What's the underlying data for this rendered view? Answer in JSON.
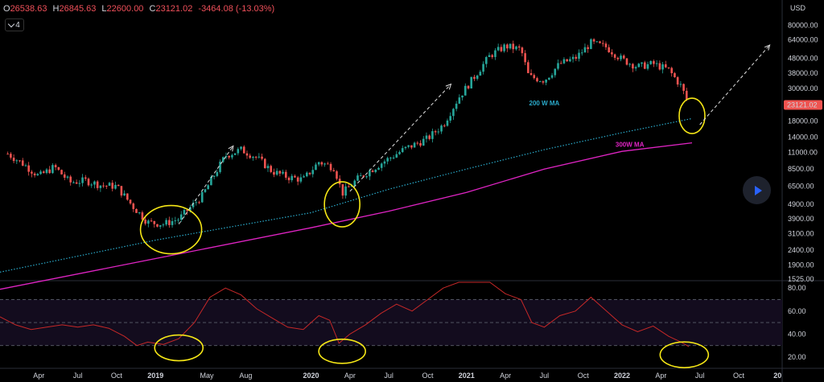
{
  "header": {
    "open_label": "O",
    "open": "26538.63",
    "high_label": "H",
    "high": "26845.63",
    "low_label": "L",
    "low": "22600.00",
    "close_label": "C",
    "close": "23121.02",
    "change": "-3464.08 (-13.03%)",
    "indicator_count": "4",
    "currency": "USD"
  },
  "colors": {
    "up": "#26a69a",
    "down": "#ef5350",
    "ma200": "#2aa9c9",
    "ma300": "#e024c4",
    "rsi": "#c62828",
    "circle": "#f5e616",
    "price_tag": "#ef5350"
  },
  "chart_data": [
    {
      "type": "candlestick",
      "scale": "log",
      "ylim": [
        1525,
        95000
      ],
      "y_ticks": [
        "80000.00",
        "64000.00",
        "48000.00",
        "38000.00",
        "30000.00",
        "18000.00",
        "14000.00",
        "11000.00",
        "8500.00",
        "6500.00",
        "4900.00",
        "3900.00",
        "3100.00",
        "2400.00",
        "1900.00",
        "1525.00"
      ],
      "x_ticks": [
        "Apr",
        "Jul",
        "Oct",
        "2019",
        "May",
        "Aug",
        "2020",
        "Apr",
        "Jul",
        "Oct",
        "2021",
        "Apr",
        "Jul",
        "Oct",
        "2022",
        "Apr",
        "Jul",
        "Oct",
        "20"
      ],
      "last_price": "23121.02",
      "series": [
        {
          "name": "200 W MA",
          "points": [
            [
              2018.0,
              1700
            ],
            [
              2019.0,
              2800
            ],
            [
              2020.0,
              4300
            ],
            [
              2020.5,
              6200
            ],
            [
              2021.0,
              8500
            ],
            [
              2021.5,
              11500
            ],
            [
              2022.0,
              15000
            ],
            [
              2022.45,
              18700
            ]
          ]
        },
        {
          "name": "300W MA",
          "points": [
            [
              2018.0,
              1300
            ],
            [
              2019.0,
              2100
            ],
            [
              2020.0,
              3400
            ],
            [
              2020.5,
              4400
            ],
            [
              2021.0,
              5900
            ],
            [
              2021.5,
              8500
            ],
            [
              2022.0,
              11200
            ],
            [
              2022.45,
              12800
            ]
          ]
        }
      ],
      "price_path": [
        [
          2018.05,
          10800
        ],
        [
          2018.15,
          9200
        ],
        [
          2018.25,
          7600
        ],
        [
          2018.35,
          8800
        ],
        [
          2018.45,
          6900
        ],
        [
          2018.55,
          7100
        ],
        [
          2018.65,
          6600
        ],
        [
          2018.75,
          6500
        ],
        [
          2018.85,
          4800
        ],
        [
          2018.95,
          3700
        ],
        [
          2019.05,
          3600
        ],
        [
          2019.15,
          3900
        ],
        [
          2019.3,
          5600
        ],
        [
          2019.45,
          10500
        ],
        [
          2019.55,
          11500
        ],
        [
          2019.65,
          10200
        ],
        [
          2019.75,
          8200
        ],
        [
          2019.85,
          7500
        ],
        [
          2019.95,
          7200
        ],
        [
          2020.05,
          9500
        ],
        [
          2020.15,
          8700
        ],
        [
          2020.2,
          5800
        ],
        [
          2020.3,
          7300
        ],
        [
          2020.45,
          9300
        ],
        [
          2020.6,
          11600
        ],
        [
          2020.75,
          13700
        ],
        [
          2020.85,
          17000
        ],
        [
          2020.95,
          26000
        ],
        [
          2021.05,
          36000
        ],
        [
          2021.15,
          50000
        ],
        [
          2021.25,
          58000
        ],
        [
          2021.35,
          55000
        ],
        [
          2021.4,
          36000
        ],
        [
          2021.5,
          34000
        ],
        [
          2021.6,
          44000
        ],
        [
          2021.7,
          48000
        ],
        [
          2021.8,
          61000
        ],
        [
          2021.9,
          57000
        ],
        [
          2022.0,
          47000
        ],
        [
          2022.1,
          42000
        ],
        [
          2022.2,
          44000
        ],
        [
          2022.3,
          40000
        ],
        [
          2022.38,
          31000
        ],
        [
          2022.43,
          23121
        ]
      ],
      "annotations": [
        "200 W MA",
        "300W MA"
      ]
    },
    {
      "type": "line",
      "name": "RSI",
      "ylim": [
        20,
        85
      ],
      "y_ticks": [
        "80.00",
        "60.00",
        "40.00",
        "20.00"
      ],
      "guides": [
        70,
        50,
        30
      ],
      "points": [
        [
          2018.0,
          55
        ],
        [
          2018.1,
          48
        ],
        [
          2018.2,
          44
        ],
        [
          2018.3,
          46
        ],
        [
          2018.4,
          48
        ],
        [
          2018.5,
          46
        ],
        [
          2018.6,
          48
        ],
        [
          2018.7,
          45
        ],
        [
          2018.8,
          38
        ],
        [
          2018.88,
          30
        ],
        [
          2018.95,
          33
        ],
        [
          2019.05,
          31
        ],
        [
          2019.15,
          36
        ],
        [
          2019.25,
          50
        ],
        [
          2019.35,
          72
        ],
        [
          2019.45,
          80
        ],
        [
          2019.55,
          74
        ],
        [
          2019.65,
          62
        ],
        [
          2019.75,
          54
        ],
        [
          2019.85,
          46
        ],
        [
          2019.95,
          44
        ],
        [
          2020.05,
          56
        ],
        [
          2020.12,
          52
        ],
        [
          2020.18,
          32
        ],
        [
          2020.25,
          40
        ],
        [
          2020.35,
          48
        ],
        [
          2020.45,
          58
        ],
        [
          2020.55,
          66
        ],
        [
          2020.65,
          60
        ],
        [
          2020.75,
          70
        ],
        [
          2020.85,
          80
        ],
        [
          2020.95,
          90
        ],
        [
          2021.05,
          92
        ],
        [
          2021.15,
          85
        ],
        [
          2021.25,
          75
        ],
        [
          2021.35,
          70
        ],
        [
          2021.42,
          50
        ],
        [
          2021.5,
          46
        ],
        [
          2021.6,
          56
        ],
        [
          2021.7,
          60
        ],
        [
          2021.8,
          72
        ],
        [
          2021.9,
          60
        ],
        [
          2022.0,
          48
        ],
        [
          2022.1,
          42
        ],
        [
          2022.2,
          47
        ],
        [
          2022.3,
          38
        ],
        [
          2022.38,
          33
        ],
        [
          2022.43,
          29
        ]
      ]
    }
  ]
}
